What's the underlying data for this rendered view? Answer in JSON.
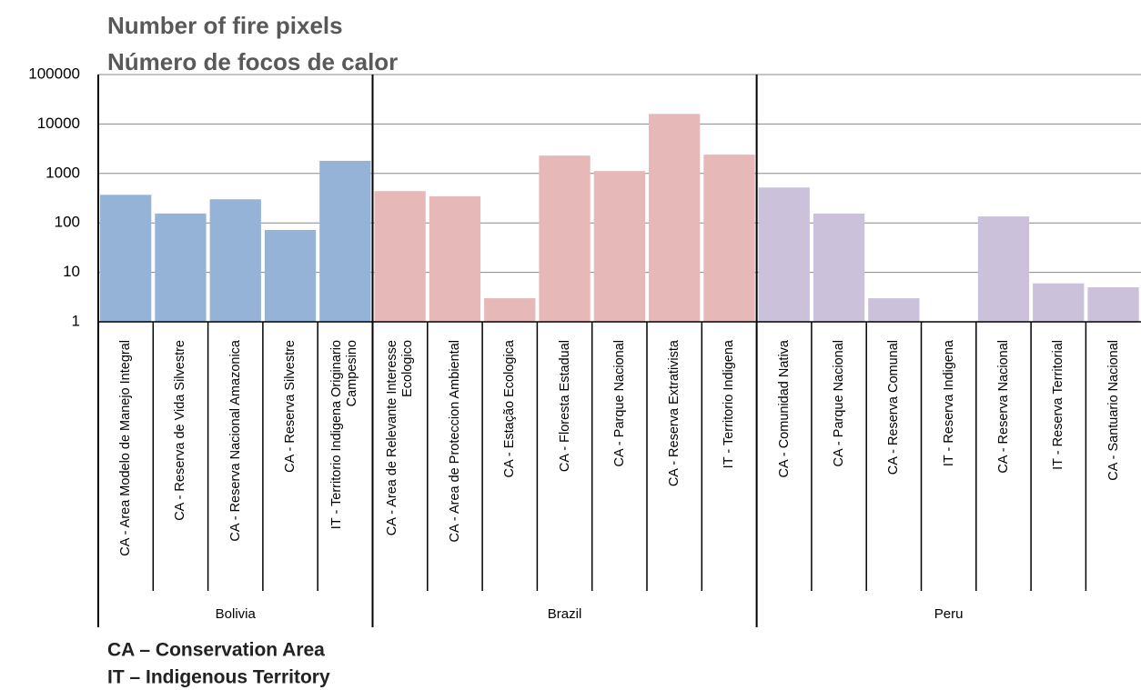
{
  "chart_data": {
    "type": "bar",
    "title": "Number of fire pixels",
    "subtitle": "Número de focos de calor",
    "log_scale": true,
    "grid": true,
    "ylim": [
      1,
      100000
    ],
    "yticks": [
      1,
      10,
      100,
      1000,
      10000,
      100000
    ],
    "groups": [
      {
        "name": "Bolivia",
        "color": "#95b3d7",
        "categories": [
          "CA - Area Modelo de Manejo Integral",
          "CA - Reserva de Vida Silvestre",
          "CA - Reserva Nacional Amazonica",
          "CA - Reserva Silvestre",
          "IT - Territorio Indigena Originario Campesino"
        ],
        "values": [
          370,
          155,
          300,
          72,
          1800
        ]
      },
      {
        "name": "Brazil",
        "color": "#e6b9b8",
        "categories": [
          "CA - Area de Relevante Interesse Ecologico",
          "CA - Area de Proteccion Ambiental",
          "CA - Estação Ecologica",
          "CA - Floresta Estadual",
          "CA - Parque Nacional",
          "CA - Reserva Extrativista",
          "IT - Territorio Indigena"
        ],
        "values": [
          440,
          345,
          3,
          2300,
          1120,
          16000,
          2400
        ]
      },
      {
        "name": "Peru",
        "color": "#ccc1da",
        "categories": [
          "CA - Comunidad Nativa",
          "CA - Parque Nacional",
          "CA - Reserva Comunal",
          "IT - Reserva Indigena",
          "CA - Reserva Nacional",
          "IT - Reserva Territorial",
          "CA - Santuario Nacional"
        ],
        "values": [
          520,
          155,
          3,
          1,
          135,
          6,
          5
        ]
      }
    ],
    "notes": [
      "CA – Conservation Area",
      "IT – Indigenous Territory"
    ]
  }
}
